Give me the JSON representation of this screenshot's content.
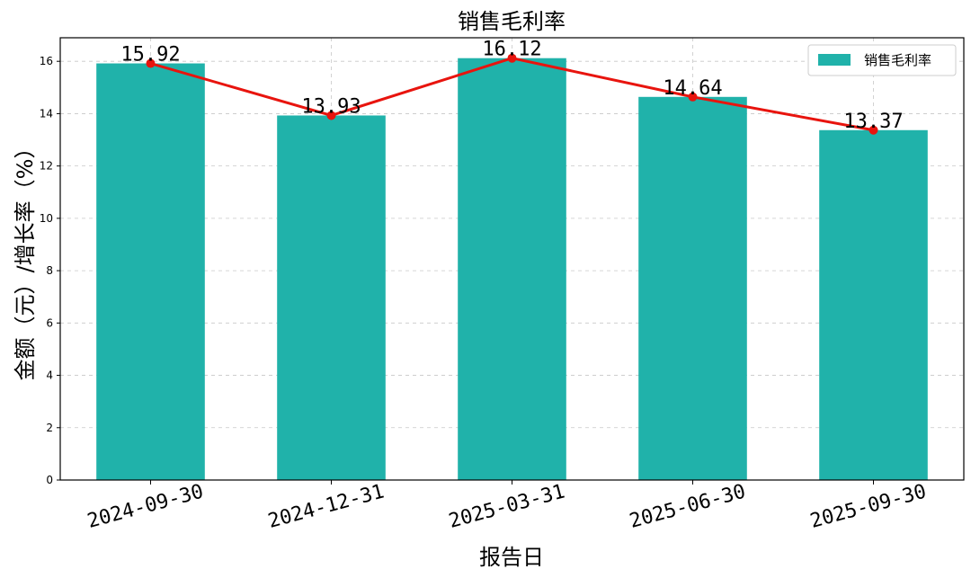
{
  "chart_data": {
    "type": "bar",
    "title": "销售毛利率",
    "xlabel": "报告日",
    "ylabel": "金额（元）/增长率（%）",
    "categories": [
      "2024-09-30",
      "2024-12-31",
      "2025-03-31",
      "2025-06-30",
      "2025-09-30"
    ],
    "series": [
      {
        "name": "销售毛利率",
        "type": "bar",
        "values": [
          15.92,
          13.93,
          16.12,
          14.64,
          13.37
        ],
        "color": "#20b2aa"
      },
      {
        "type": "line",
        "values": [
          15.92,
          13.93,
          16.12,
          14.64,
          13.37
        ],
        "color": "#e8140e"
      }
    ],
    "data_labels": [
      "15.92",
      "13.93",
      "16.12",
      "14.64",
      "13.37"
    ],
    "ylim": [
      0,
      16.9
    ],
    "yticks": [
      0,
      2,
      4,
      6,
      8,
      10,
      12,
      14,
      16
    ],
    "grid": true,
    "legend": {
      "position": "top-right",
      "entries": [
        "销售毛利率"
      ]
    }
  }
}
